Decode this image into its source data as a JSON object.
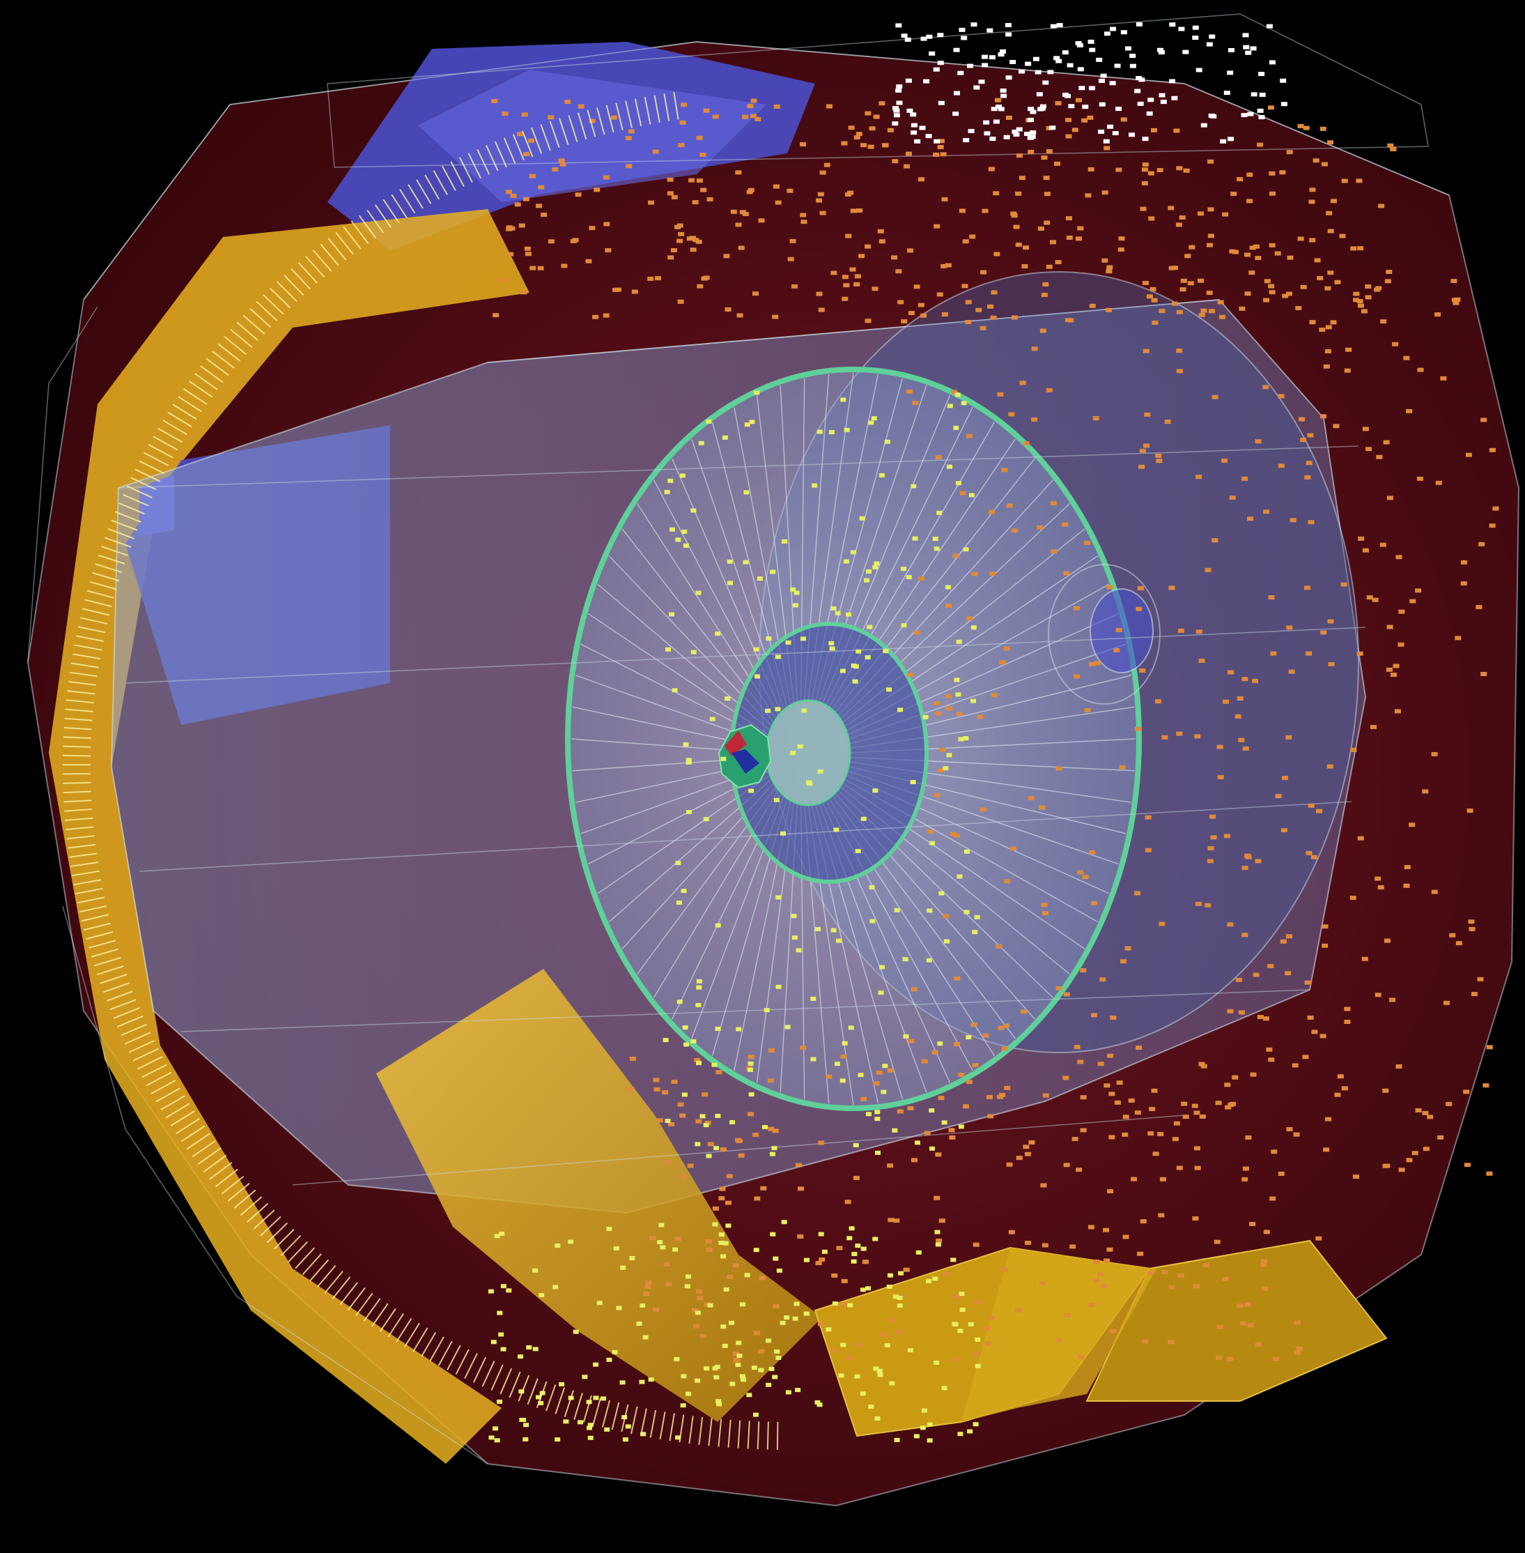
{
  "image": {
    "subject": "detector-event-display",
    "colors": {
      "background": "#000000",
      "outer_barrel": "#5a0c14",
      "outer_barrel_dark": "#3a060c",
      "muon_chambers": "#e8b020",
      "yoke_blocks": "#c99a12",
      "blue_panels": "#4a4ec8",
      "inner_shell": "#9fb0d8",
      "wireframe": "#cfe0e8",
      "endcap_ring": "#5fd09a",
      "hits_orange": "#e08a3a",
      "hits_yellow": "#e6f060",
      "hits_white": "#ffffff"
    }
  }
}
